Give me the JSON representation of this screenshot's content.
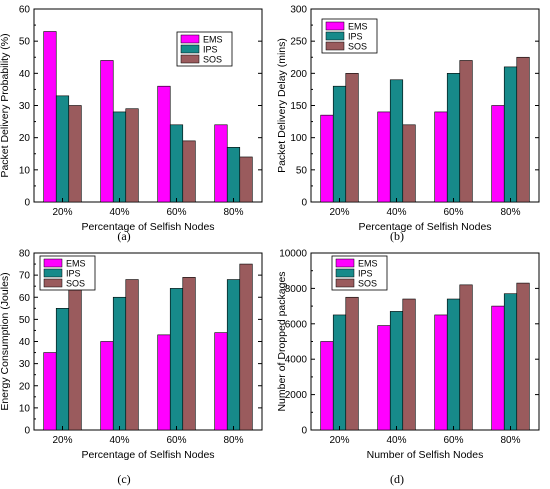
{
  "colors": {
    "EMS": "#ff00ff",
    "IPS": "#178a8a",
    "SOS": "#9a5b5d"
  },
  "chart_data": [
    {
      "type": "bar",
      "panel_label": "(a)",
      "categories": [
        "20%",
        "40%",
        "60%",
        "80%"
      ],
      "series": [
        {
          "name": "EMS",
          "values": [
            53,
            44,
            36,
            24
          ]
        },
        {
          "name": "IPS",
          "values": [
            33,
            28,
            24,
            17
          ]
        },
        {
          "name": "SOS",
          "values": [
            30,
            29,
            19,
            14
          ]
        }
      ],
      "xlabel": "Percentage of Selfish Nodes",
      "ylabel": "Packet Delivery Probability (%)",
      "ylim": [
        0,
        60
      ],
      "yticks": [
        0,
        10,
        20,
        30,
        40,
        50,
        60
      ],
      "legend": "top-right",
      "grid": false
    },
    {
      "type": "bar",
      "panel_label": "(b)",
      "categories": [
        "20%",
        "40%",
        "60%",
        "80%"
      ],
      "series": [
        {
          "name": "EMS",
          "values": [
            135,
            140,
            140,
            150
          ]
        },
        {
          "name": "IPS",
          "values": [
            180,
            190,
            200,
            210
          ]
        },
        {
          "name": "SOS",
          "values": [
            200,
            120,
            220,
            225
          ]
        }
      ],
      "xlabel": "Percentage of Selfish Nodes",
      "ylabel": "Packet Delivery Delay (mins)",
      "ylim": [
        0,
        300
      ],
      "yticks": [
        0,
        50,
        100,
        150,
        200,
        250,
        300
      ],
      "legend": "top-left",
      "grid": false
    },
    {
      "type": "bar",
      "panel_label": "(c)",
      "categories": [
        "20%",
        "40%",
        "60%",
        "80%"
      ],
      "series": [
        {
          "name": "EMS",
          "values": [
            35,
            40,
            43,
            44
          ]
        },
        {
          "name": "IPS",
          "values": [
            55,
            60,
            64,
            68
          ]
        },
        {
          "name": "SOS",
          "values": [
            64,
            68,
            69,
            75
          ]
        }
      ],
      "xlabel": "Percentage of Selfish Nodes",
      "ylabel": "Energy Consumption (Joules)",
      "ylim": [
        0,
        80
      ],
      "yticks": [
        0,
        10,
        20,
        30,
        40,
        50,
        60,
        70,
        80
      ],
      "legend": "top-left",
      "grid": false
    },
    {
      "type": "bar",
      "panel_label": "(d)",
      "categories": [
        "20%",
        "40%",
        "60%",
        "80%"
      ],
      "series": [
        {
          "name": "EMS",
          "values": [
            5000,
            5900,
            6500,
            7000
          ]
        },
        {
          "name": "IPS",
          "values": [
            6500,
            6700,
            7400,
            7700
          ]
        },
        {
          "name": "SOS",
          "values": [
            7500,
            7400,
            8200,
            8300
          ]
        }
      ],
      "xlabel": "Number of Selfish Nodes",
      "ylabel": "Number of Dropped packages",
      "ylim": [
        0,
        10000
      ],
      "yticks": [
        0,
        2000,
        4000,
        6000,
        8000,
        10000
      ],
      "legend": "top-left",
      "grid": false
    }
  ]
}
